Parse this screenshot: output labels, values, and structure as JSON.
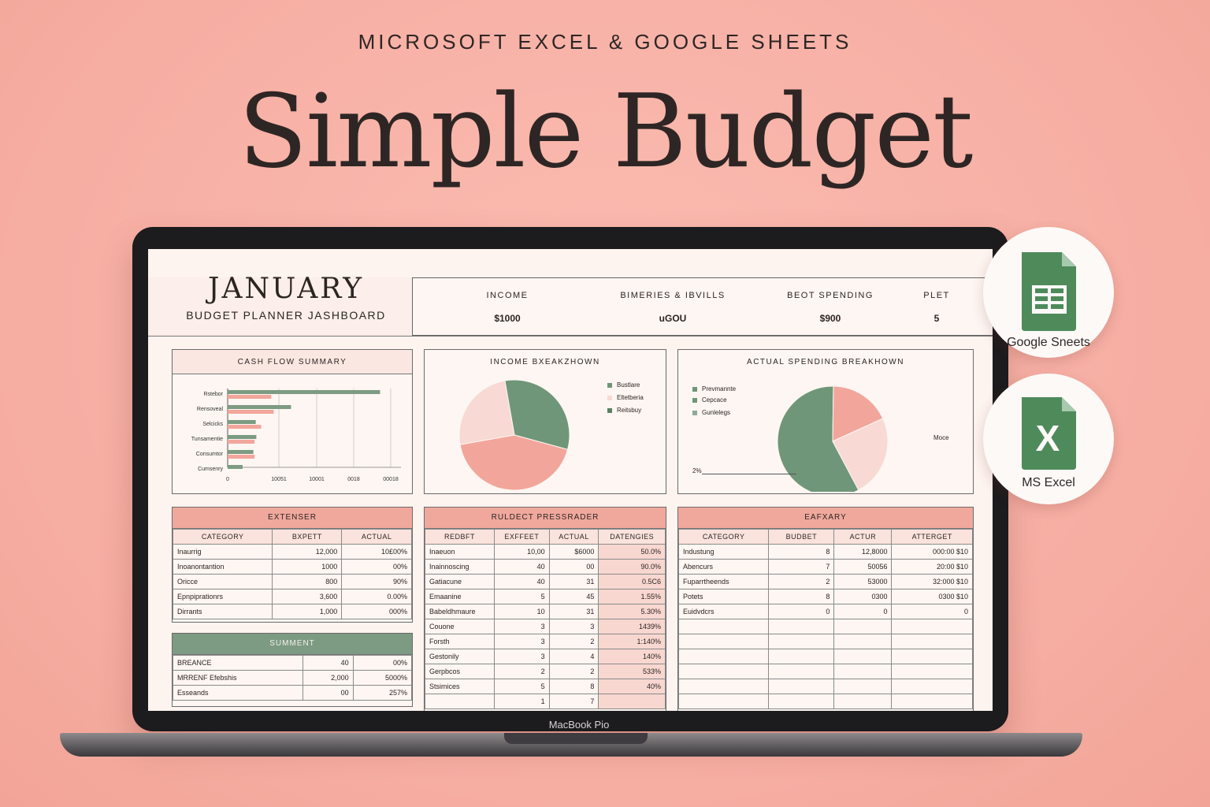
{
  "header": {
    "kicker": "MICROSOFT EXCEL & GOOGLE SHEETS",
    "title": "Simple Budget"
  },
  "device": {
    "label": "MacBook Pio"
  },
  "dashboard": {
    "month": "JANUARY",
    "subtitle": "BUDGET PLANNER JASHBOARD",
    "kpis": [
      {
        "label": "INCOME",
        "value": "$1000"
      },
      {
        "label": "BIMERIES & IBVILLS",
        "value": "uGOU"
      },
      {
        "label": "BEOT SPENDING",
        "value": "$900"
      },
      {
        "label": "PLET",
        "value": "5"
      }
    ]
  },
  "cash_flow": {
    "title": "CASH FLOW SUMMARY",
    "chart_data": {
      "type": "bar",
      "categories": [
        "Rstebor",
        "Rensoveal",
        "Selcicks",
        "Tunsamentie",
        "Consumtor",
        "Cumsenry"
      ],
      "series": [
        {
          "values": [
            2550,
            1060,
            470,
            480,
            430,
            250
          ]
        },
        {
          "values": [
            730,
            770,
            560,
            450,
            450,
            0
          ]
        }
      ],
      "xticks": [
        "0",
        "10051",
        "10001",
        "0018",
        "00018"
      ]
    }
  },
  "income_breakdown": {
    "title": "INCOME BXEAKZHOWN",
    "legend": [
      "Bustlare",
      "Eltetberia",
      "Reitsbuy"
    ],
    "colors": [
      "#6f9678",
      "#f2a69b",
      "#f8d9d3"
    ],
    "chart_data": {
      "type": "pie",
      "labels": [
        "Bustlare",
        "Eltetberia",
        "Reitsbuy"
      ],
      "values": [
        32,
        43,
        25
      ]
    }
  },
  "actual_spending": {
    "title": "ACTUAL SPENDING BREAKHOWN",
    "legend": [
      "Prevmannte",
      "Cepcace",
      "Gunlelegs"
    ],
    "callout_left": "2%",
    "callout_right": "Moce",
    "chart_data": {
      "type": "pie",
      "labels": [
        "Prevmannte",
        "Cepcace",
        "Gunlelegs"
      ],
      "values": [
        58,
        18,
        24
      ]
    }
  },
  "expenses": {
    "title": "EXTENSER",
    "columns": [
      "CATEGORY",
      "BXPETT",
      "ACTUAL"
    ],
    "rows": [
      [
        "Inaurrig",
        "12,000",
        "10£00%"
      ],
      [
        "Inoanontantion",
        "1000",
        "00%"
      ],
      [
        "Oricce",
        "800",
        "90%"
      ],
      [
        "Epnpiprationrs",
        "3,600",
        "0.00%"
      ],
      [
        "Dirrants",
        "1,000",
        "000%"
      ]
    ]
  },
  "summary": {
    "title": "SUMMENT",
    "rows": [
      [
        "BREANCE",
        "40",
        "00%"
      ],
      [
        "MRRENF Efebshis",
        "2,000",
        "5000%"
      ],
      [
        "Esseands",
        "00",
        "257%"
      ]
    ]
  },
  "budget_tracker": {
    "title": "RULDECT PRESSRADER",
    "columns": [
      "REDBFT",
      "EXFFEET",
      "ACTUAL",
      "DATENGIES"
    ],
    "rows": [
      [
        "Inaeuon",
        "10,00",
        "$6000",
        "50.0%"
      ],
      [
        "Inainnoscing",
        "40",
        "00",
        "90.0%"
      ],
      [
        "Gatiacune",
        "40",
        "31",
        "0.5C6"
      ],
      [
        "Emaanine",
        "5",
        "45",
        "1.55%"
      ],
      [
        "Babeldhmaure",
        "10",
        "31",
        "5.30%"
      ],
      [
        "Couone",
        "3",
        "3",
        "1439%"
      ],
      [
        "Forsth",
        "3",
        "2",
        "1:140%"
      ],
      [
        "Gestonily",
        "3",
        "4",
        "140%"
      ],
      [
        "Gerpbcos",
        "2",
        "2",
        "533%"
      ],
      [
        "Stsimices",
        "5",
        "8",
        "40%"
      ],
      [
        "",
        "1",
        "7",
        ""
      ]
    ]
  },
  "savings": {
    "title": "EAFXARY",
    "columns": [
      "CATEGORY",
      "BUDBET",
      "ACTUR",
      "ATTERGET"
    ],
    "rows": [
      [
        "Industung",
        "8",
        "12,8000",
        "000:00 $10"
      ],
      [
        "Abencurs",
        "7",
        "50056",
        "20:00 $10"
      ],
      [
        "Fuparrtheends",
        "2",
        "53000",
        "32:000 $10"
      ],
      [
        "Potets",
        "8",
        "0300",
        "0300 $10"
      ],
      [
        "Euidvdcrs",
        "0",
        "0",
        "0"
      ]
    ]
  },
  "badges": {
    "sheets_label": "Google Sneets",
    "excel_label": "MS Excel",
    "excel_letter": "X"
  }
}
